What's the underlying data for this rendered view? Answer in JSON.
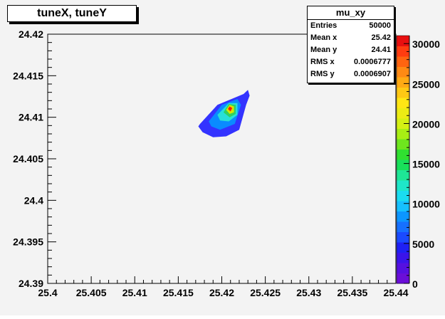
{
  "chart_data": {
    "type": "heatmap",
    "title": "tuneX, tuneY",
    "xlim": [
      25.4,
      25.44
    ],
    "ylim": [
      24.39,
      24.42
    ],
    "x_ticks": [
      "25.4",
      "25.405",
      "25.41",
      "25.415",
      "25.42",
      "25.425",
      "25.43",
      "25.435",
      "25.44"
    ],
    "y_ticks": [
      "24.39",
      "24.395",
      "24.4",
      "24.405",
      "24.41",
      "24.415",
      "24.42"
    ],
    "z_ticks": [
      "0",
      "5000",
      "10000",
      "15000",
      "20000",
      "25000",
      "30000"
    ],
    "zlim": [
      0,
      31000
    ],
    "peak": {
      "x": 25.421,
      "y": 24.411
    },
    "contours": [
      {
        "level": 100,
        "color": "#3333ff",
        "points": [
          [
            25.4175,
            24.4092
          ],
          [
            25.4195,
            24.4115
          ],
          [
            25.4225,
            24.4128
          ],
          [
            25.423,
            24.4133
          ],
          [
            25.4232,
            24.4126
          ],
          [
            25.4228,
            24.4115
          ],
          [
            25.422,
            24.4085
          ],
          [
            25.4205,
            24.4077
          ],
          [
            25.419,
            24.4076
          ],
          [
            25.4178,
            24.4082
          ],
          [
            25.4173,
            24.4089
          ]
        ]
      },
      {
        "level": 3000,
        "color": "#0a8bff",
        "points": [
          [
            25.4185,
            24.4095
          ],
          [
            25.42,
            24.4115
          ],
          [
            25.4218,
            24.4122
          ],
          [
            25.4222,
            24.4115
          ],
          [
            25.4215,
            24.4092
          ],
          [
            25.4198,
            24.4085
          ],
          [
            25.4188,
            24.4089
          ]
        ]
      },
      {
        "level": 8000,
        "color": "#28e0d8",
        "points": [
          [
            25.4195,
            24.4103
          ],
          [
            25.4208,
            24.4117
          ],
          [
            25.4218,
            24.4117
          ],
          [
            25.4218,
            24.4103
          ],
          [
            25.4208,
            24.4095
          ],
          [
            25.4198,
            24.4096
          ]
        ]
      },
      {
        "level": 16000,
        "color": "#30d060",
        "points": [
          [
            25.4202,
            24.4106
          ],
          [
            25.4208,
            24.4116
          ],
          [
            25.4216,
            24.4115
          ],
          [
            25.4216,
            24.4104
          ],
          [
            25.4209,
            24.41
          ]
        ]
      },
      {
        "level": 23000,
        "color": "#d7e600",
        "points": [
          [
            25.4205,
            24.4109
          ],
          [
            25.4209,
            24.4115
          ],
          [
            25.4214,
            24.4113
          ],
          [
            25.4214,
            24.4106
          ],
          [
            25.4209,
            24.4104
          ]
        ]
      },
      {
        "level": 29000,
        "color": "#ff1a00",
        "points": [
          [
            25.4207,
            24.411
          ],
          [
            25.4209,
            24.4113
          ],
          [
            25.4212,
            24.4111
          ],
          [
            25.421,
            24.4107
          ]
        ]
      }
    ],
    "palette": [
      "#6a0ed8",
      "#5510e0",
      "#3a14ea",
      "#1f20f4",
      "#1a4aff",
      "#1670ff",
      "#0c96ff",
      "#16c0ff",
      "#1adcf0",
      "#1ee6c8",
      "#1ee696",
      "#18e05a",
      "#30e030",
      "#6ee61e",
      "#a8ee14",
      "#d4f014",
      "#ecec14",
      "#ffe614",
      "#ffc814",
      "#ffaa14",
      "#ff8a14",
      "#ff6410",
      "#ff3c10",
      "#e81010"
    ]
  },
  "stats": {
    "title": "mu_xy",
    "rows": [
      {
        "label": "Entries",
        "value": "50000"
      },
      {
        "label": "Mean x",
        "value": "25.42"
      },
      {
        "label": "Mean y",
        "value": "24.41"
      },
      {
        "label": "RMS x",
        "value": "0.0006777"
      },
      {
        "label": "RMS y",
        "value": "0.0006907"
      }
    ]
  }
}
